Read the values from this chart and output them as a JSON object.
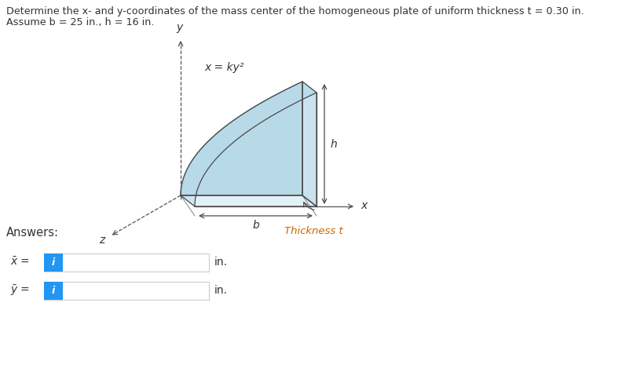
{
  "title_line1": "Determine the x- and y-coordinates of the mass center of the homogeneous plate of uniform thickness t = 0.30 in.",
  "title_line2": "Assume b = 25 in., h = 16 in.",
  "curve_label": "x = ky²",
  "h_label": "h",
  "b_label": "b",
  "z_label": "z",
  "x_label": "x",
  "y_label": "y",
  "thickness_label": "Thickness t",
  "answers_label": "Answers:",
  "in_label": "in.",
  "fill_color": "#b8d9e8",
  "fill_alpha": 1.0,
  "edge_color": "#4a4a4a",
  "axis_color": "#555555",
  "box_blue": "#2196F3",
  "box_border": "#cccccc",
  "background": "#ffffff",
  "font_color": "#333333",
  "diagram_ox": 230,
  "diagram_oy": 225,
  "diagram_sx": 155,
  "diagram_sy": 145,
  "diagram_tdx": 18,
  "diagram_tdy": -14
}
